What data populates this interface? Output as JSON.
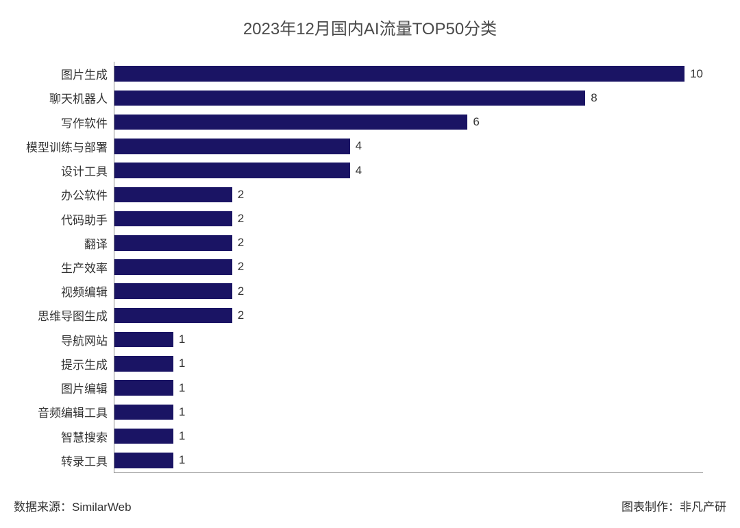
{
  "chart": {
    "type": "bar-horizontal",
    "title": "2023年12月国内AI流量TOP50分类",
    "title_fontsize": 24,
    "title_color": "#4a4a4a",
    "background_color": "#ffffff",
    "axis_color": "#888888",
    "bar_color": "#1a1464",
    "label_fontsize": 17,
    "label_color": "#333333",
    "value_fontsize": 17,
    "value_color": "#333333",
    "xmax": 10,
    "bar_height_ratio": 0.64,
    "categories": [
      "图片生成",
      "聊天机器人",
      "写作软件",
      "模型训练与部署",
      "设计工具",
      "办公软件",
      "代码助手",
      "翻译",
      "生产效率",
      "视频编辑",
      "思维导图生成",
      "导航网站",
      "提示生成",
      "图片编辑",
      "音频编辑工具",
      "智慧搜索",
      "转录工具"
    ],
    "values": [
      10,
      8,
      6,
      4,
      4,
      2,
      2,
      2,
      2,
      2,
      2,
      1,
      1,
      1,
      1,
      1,
      1
    ]
  },
  "footer": {
    "left": "数据来源：SimilarWeb",
    "right": "图表制作：非凡产研",
    "fontsize": 17,
    "color": "#333333"
  }
}
